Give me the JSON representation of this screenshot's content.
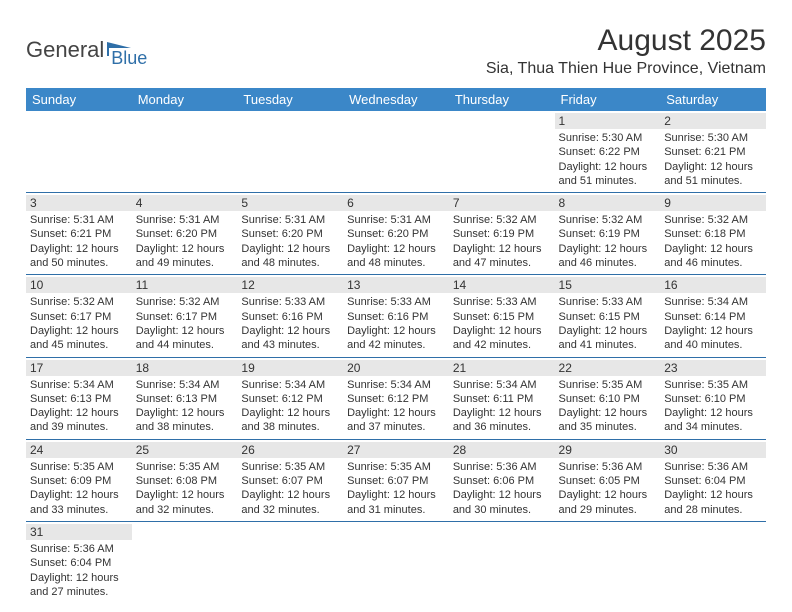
{
  "logo": {
    "general": "General",
    "blue": "Blue"
  },
  "title": "August 2025",
  "location": "Sia, Thua Thien Hue Province, Vietnam",
  "colors": {
    "header_bg": "#3b87c8",
    "header_text": "#ffffff",
    "daynum_bg": "#e7e7e7",
    "divider": "#2f6fa8",
    "text": "#333333",
    "logo_blue": "#2f6fa8"
  },
  "weekdays": [
    "Sunday",
    "Monday",
    "Tuesday",
    "Wednesday",
    "Thursday",
    "Friday",
    "Saturday"
  ],
  "weeks": [
    [
      null,
      null,
      null,
      null,
      null,
      {
        "day": "1",
        "sunrise": "Sunrise: 5:30 AM",
        "sunset": "Sunset: 6:22 PM",
        "daylight": "Daylight: 12 hours and 51 minutes."
      },
      {
        "day": "2",
        "sunrise": "Sunrise: 5:30 AM",
        "sunset": "Sunset: 6:21 PM",
        "daylight": "Daylight: 12 hours and 51 minutes."
      }
    ],
    [
      {
        "day": "3",
        "sunrise": "Sunrise: 5:31 AM",
        "sunset": "Sunset: 6:21 PM",
        "daylight": "Daylight: 12 hours and 50 minutes."
      },
      {
        "day": "4",
        "sunrise": "Sunrise: 5:31 AM",
        "sunset": "Sunset: 6:20 PM",
        "daylight": "Daylight: 12 hours and 49 minutes."
      },
      {
        "day": "5",
        "sunrise": "Sunrise: 5:31 AM",
        "sunset": "Sunset: 6:20 PM",
        "daylight": "Daylight: 12 hours and 48 minutes."
      },
      {
        "day": "6",
        "sunrise": "Sunrise: 5:31 AM",
        "sunset": "Sunset: 6:20 PM",
        "daylight": "Daylight: 12 hours and 48 minutes."
      },
      {
        "day": "7",
        "sunrise": "Sunrise: 5:32 AM",
        "sunset": "Sunset: 6:19 PM",
        "daylight": "Daylight: 12 hours and 47 minutes."
      },
      {
        "day": "8",
        "sunrise": "Sunrise: 5:32 AM",
        "sunset": "Sunset: 6:19 PM",
        "daylight": "Daylight: 12 hours and 46 minutes."
      },
      {
        "day": "9",
        "sunrise": "Sunrise: 5:32 AM",
        "sunset": "Sunset: 6:18 PM",
        "daylight": "Daylight: 12 hours and 46 minutes."
      }
    ],
    [
      {
        "day": "10",
        "sunrise": "Sunrise: 5:32 AM",
        "sunset": "Sunset: 6:17 PM",
        "daylight": "Daylight: 12 hours and 45 minutes."
      },
      {
        "day": "11",
        "sunrise": "Sunrise: 5:32 AM",
        "sunset": "Sunset: 6:17 PM",
        "daylight": "Daylight: 12 hours and 44 minutes."
      },
      {
        "day": "12",
        "sunrise": "Sunrise: 5:33 AM",
        "sunset": "Sunset: 6:16 PM",
        "daylight": "Daylight: 12 hours and 43 minutes."
      },
      {
        "day": "13",
        "sunrise": "Sunrise: 5:33 AM",
        "sunset": "Sunset: 6:16 PM",
        "daylight": "Daylight: 12 hours and 42 minutes."
      },
      {
        "day": "14",
        "sunrise": "Sunrise: 5:33 AM",
        "sunset": "Sunset: 6:15 PM",
        "daylight": "Daylight: 12 hours and 42 minutes."
      },
      {
        "day": "15",
        "sunrise": "Sunrise: 5:33 AM",
        "sunset": "Sunset: 6:15 PM",
        "daylight": "Daylight: 12 hours and 41 minutes."
      },
      {
        "day": "16",
        "sunrise": "Sunrise: 5:34 AM",
        "sunset": "Sunset: 6:14 PM",
        "daylight": "Daylight: 12 hours and 40 minutes."
      }
    ],
    [
      {
        "day": "17",
        "sunrise": "Sunrise: 5:34 AM",
        "sunset": "Sunset: 6:13 PM",
        "daylight": "Daylight: 12 hours and 39 minutes."
      },
      {
        "day": "18",
        "sunrise": "Sunrise: 5:34 AM",
        "sunset": "Sunset: 6:13 PM",
        "daylight": "Daylight: 12 hours and 38 minutes."
      },
      {
        "day": "19",
        "sunrise": "Sunrise: 5:34 AM",
        "sunset": "Sunset: 6:12 PM",
        "daylight": "Daylight: 12 hours and 38 minutes."
      },
      {
        "day": "20",
        "sunrise": "Sunrise: 5:34 AM",
        "sunset": "Sunset: 6:12 PM",
        "daylight": "Daylight: 12 hours and 37 minutes."
      },
      {
        "day": "21",
        "sunrise": "Sunrise: 5:34 AM",
        "sunset": "Sunset: 6:11 PM",
        "daylight": "Daylight: 12 hours and 36 minutes."
      },
      {
        "day": "22",
        "sunrise": "Sunrise: 5:35 AM",
        "sunset": "Sunset: 6:10 PM",
        "daylight": "Daylight: 12 hours and 35 minutes."
      },
      {
        "day": "23",
        "sunrise": "Sunrise: 5:35 AM",
        "sunset": "Sunset: 6:10 PM",
        "daylight": "Daylight: 12 hours and 34 minutes."
      }
    ],
    [
      {
        "day": "24",
        "sunrise": "Sunrise: 5:35 AM",
        "sunset": "Sunset: 6:09 PM",
        "daylight": "Daylight: 12 hours and 33 minutes."
      },
      {
        "day": "25",
        "sunrise": "Sunrise: 5:35 AM",
        "sunset": "Sunset: 6:08 PM",
        "daylight": "Daylight: 12 hours and 32 minutes."
      },
      {
        "day": "26",
        "sunrise": "Sunrise: 5:35 AM",
        "sunset": "Sunset: 6:07 PM",
        "daylight": "Daylight: 12 hours and 32 minutes."
      },
      {
        "day": "27",
        "sunrise": "Sunrise: 5:35 AM",
        "sunset": "Sunset: 6:07 PM",
        "daylight": "Daylight: 12 hours and 31 minutes."
      },
      {
        "day": "28",
        "sunrise": "Sunrise: 5:36 AM",
        "sunset": "Sunset: 6:06 PM",
        "daylight": "Daylight: 12 hours and 30 minutes."
      },
      {
        "day": "29",
        "sunrise": "Sunrise: 5:36 AM",
        "sunset": "Sunset: 6:05 PM",
        "daylight": "Daylight: 12 hours and 29 minutes."
      },
      {
        "day": "30",
        "sunrise": "Sunrise: 5:36 AM",
        "sunset": "Sunset: 6:04 PM",
        "daylight": "Daylight: 12 hours and 28 minutes."
      }
    ],
    [
      {
        "day": "31",
        "sunrise": "Sunrise: 5:36 AM",
        "sunset": "Sunset: 6:04 PM",
        "daylight": "Daylight: 12 hours and 27 minutes."
      },
      null,
      null,
      null,
      null,
      null,
      null
    ]
  ]
}
